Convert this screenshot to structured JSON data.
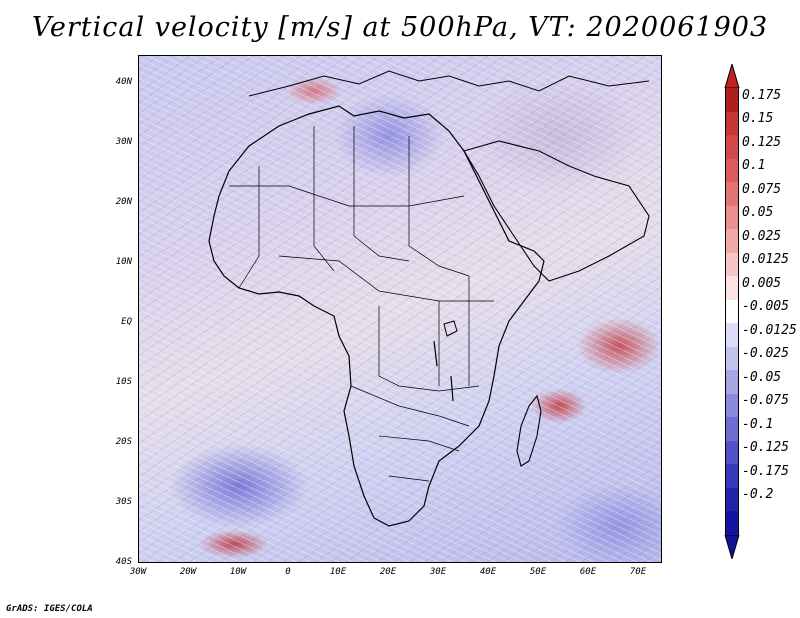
{
  "title": "Vertical velocity [m/s] at 500hPa, VT: 2020061903",
  "map": {
    "region": "Africa",
    "lat_labels": [
      "40N",
      "30N",
      "20N",
      "10N",
      "EQ",
      "10S",
      "20S",
      "30S",
      "40S"
    ],
    "lon_labels": [
      "30W",
      "20W",
      "10W",
      "0",
      "10E",
      "20E",
      "30E",
      "40E",
      "50E",
      "60E",
      "70E"
    ]
  },
  "colorbar": {
    "labels": [
      "0.175",
      "0.15",
      "0.125",
      "0.1",
      "0.075",
      "0.05",
      "0.025",
      "0.0125",
      "0.005",
      "-0.005",
      "-0.0125",
      "-0.025",
      "-0.05",
      "-0.075",
      "-0.1",
      "-0.125",
      "-0.175",
      "-0.2"
    ],
    "colors": [
      "#b01e1e",
      "#c53636",
      "#d24848",
      "#dc5c5c",
      "#e47474",
      "#ea8e8e",
      "#f0a8a8",
      "#f6c6c6",
      "#fce2e2",
      "#ffffff",
      "#dcdcf6",
      "#c2c2ef",
      "#a6a6e6",
      "#8a8add",
      "#6e6ed3",
      "#5252c8",
      "#3838ba",
      "#2222aa",
      "#1414a0"
    ],
    "arrow_top_color": "#c02020",
    "arrow_bottom_color": "#12129a"
  },
  "credit": "GrADS: IGES/COLA"
}
